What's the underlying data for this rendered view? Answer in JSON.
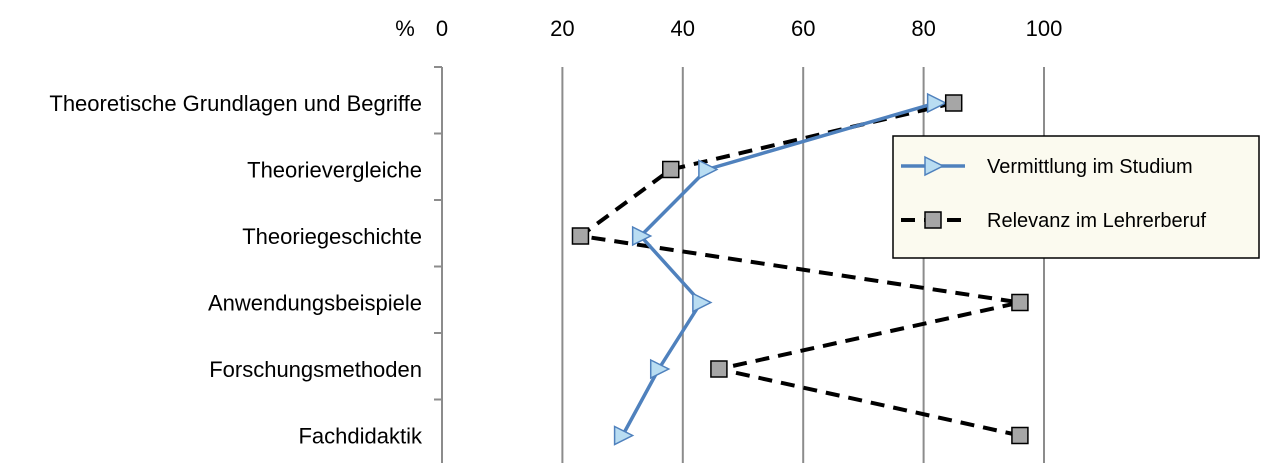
{
  "chart_data": {
    "type": "line",
    "orientation": "horizontal",
    "title": "",
    "xlabel": "",
    "ylabel": "",
    "x_unit_label": "%",
    "xlim": [
      0,
      100
    ],
    "x_ticks": [
      0,
      20,
      40,
      60,
      80,
      100
    ],
    "x_axis_position": "top",
    "grid": "vertical",
    "categories": [
      "Theoretische Grundlagen und Begriffe",
      "Theorievergleiche",
      "Theoriegeschichte",
      "Anwendungsbeispiele",
      "Forschungsmethoden",
      "Fachdidaktik"
    ],
    "series": [
      {
        "name": "Vermittlung im Studium",
        "values": [
          82,
          44,
          33,
          43,
          36,
          30
        ],
        "color": "#4F81BD",
        "marker": "triangle-right",
        "marker_fill": "#B9DDF2",
        "line_style": "solid"
      },
      {
        "name": "Relevanz im Lehrerberuf",
        "values": [
          85,
          38,
          23,
          96,
          46,
          96
        ],
        "color": "#000000",
        "marker": "square",
        "marker_fill": "#A6A6A6",
        "line_style": "dashed"
      }
    ],
    "legend": {
      "placement": "right",
      "background": "#FBFAEF"
    }
  }
}
